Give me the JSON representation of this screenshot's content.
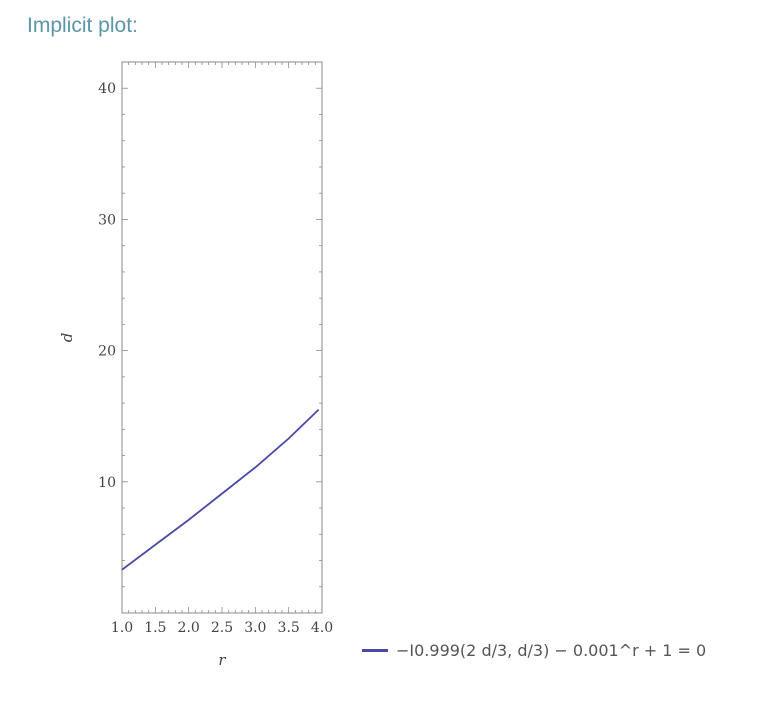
{
  "page": {
    "section_title": "Implicit plot:"
  },
  "chart_data": {
    "type": "line",
    "title": "",
    "xlabel": "r",
    "ylabel": "d",
    "xlim": [
      1.0,
      4.0
    ],
    "ylim": [
      0,
      42
    ],
    "x_ticks": [
      "1.0",
      "1.5",
      "2.0",
      "2.5",
      "3.0",
      "3.5",
      "4.0"
    ],
    "y_ticks": [
      "10",
      "20",
      "30",
      "40"
    ],
    "series": [
      {
        "name": "−I0.999(2 d/3, d/3) − 0.001^r + 1 = 0",
        "color": "#4a4aa6",
        "x": [
          1.0,
          1.5,
          2.0,
          2.5,
          3.0,
          3.5,
          3.95
        ],
        "y": [
          3.3,
          5.2,
          7.1,
          9.1,
          11.1,
          13.3,
          15.5
        ]
      }
    ],
    "legend": {
      "placement": "bottom-right"
    }
  }
}
